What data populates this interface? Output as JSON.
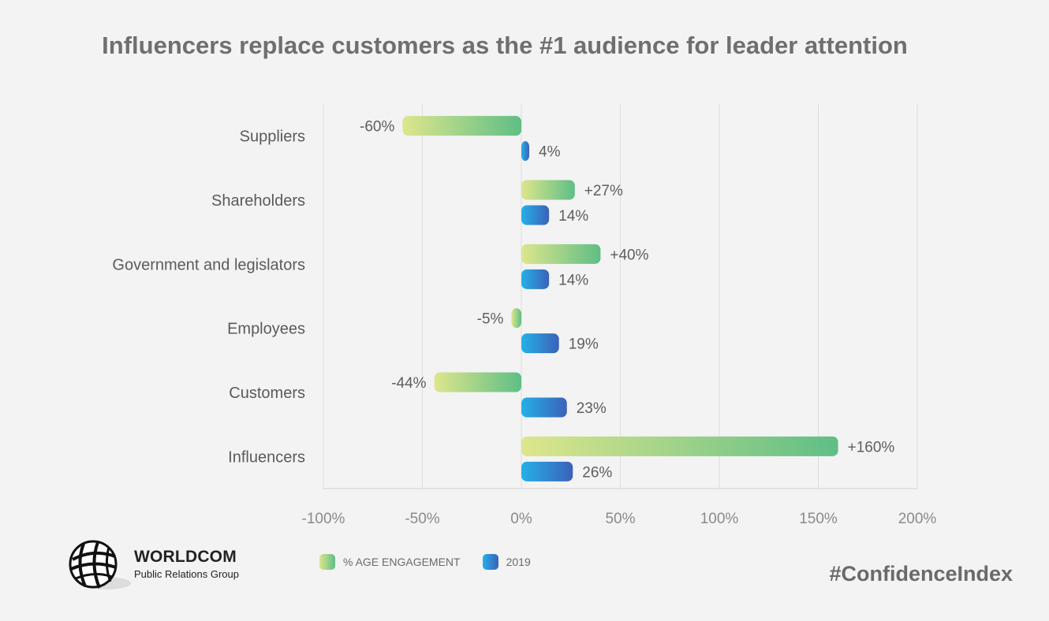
{
  "chart_data": {
    "type": "bar",
    "orientation": "horizontal",
    "title": "Influencers replace customers as the #1 audience for leader attention",
    "categories": [
      "Suppliers",
      "Shareholders",
      "Government and legislators",
      "Employees",
      "Customers",
      "Influencers"
    ],
    "series": [
      {
        "name": "% AGE ENGAGEMENT",
        "values": [
          -60,
          27,
          40,
          -5,
          -44,
          160
        ],
        "labels": [
          "-60%",
          "+27%",
          "+40%",
          "-5%",
          "-44%",
          "+160%"
        ],
        "color_start": "#dde68c",
        "color_end": "#5fbe86"
      },
      {
        "name": "2019",
        "values": [
          4,
          14,
          14,
          19,
          23,
          26
        ],
        "labels": [
          "4%",
          "14%",
          "14%",
          "19%",
          "23%",
          "26%"
        ],
        "color_start": "#25b0e8",
        "color_end": "#3b62b8"
      }
    ],
    "xlim": [
      -100,
      200
    ],
    "xticks": [
      -100,
      -50,
      0,
      50,
      100,
      150,
      200
    ],
    "xtick_labels": [
      "-100%",
      "-50%",
      "0%",
      "50%",
      "100%",
      "150%",
      "200%"
    ],
    "grid": true,
    "legend_position": "bottom"
  },
  "logo": {
    "name": "WORLDCOM",
    "subtitle": "Public Relations Group"
  },
  "hashtag": "#ConfidenceIndex"
}
